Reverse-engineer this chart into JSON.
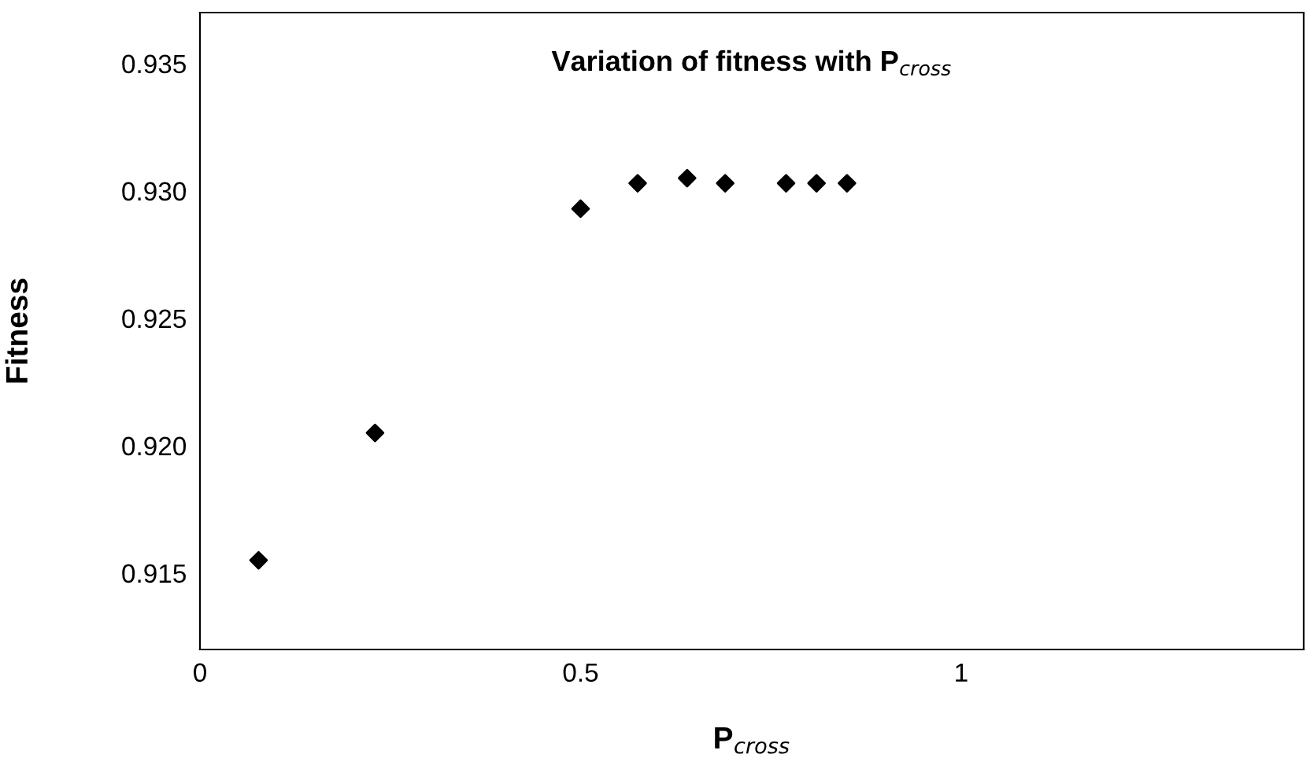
{
  "chart_data": {
    "type": "scatter",
    "title": "Variation of fitness with P$_{cross}$",
    "xlabel": "P$_{cross}$",
    "ylabel": "Fitness",
    "x": [
      0.077,
      0.23,
      0.5,
      0.575,
      0.64,
      0.69,
      0.77,
      0.81,
      0.85
    ],
    "series": [
      {
        "color": "#000000",
        "values": [
          0.9155,
          0.9205,
          0.9293,
          0.9303,
          0.9305,
          0.9303,
          0.9303,
          0.9303,
          0.9303
        ]
      }
    ],
    "xlim": [
      0,
      1.45
    ],
    "xticks": [
      0,
      0.5,
      1
    ],
    "ylim": [
      0.912,
      0.937
    ],
    "yticks": [
      0.915,
      {
        "value": 0.92,
        "label": "0.920"
      },
      0.925,
      {
        "value": 0.93,
        "label": "0.930"
      },
      0.935
    ],
    "marker": "diamond",
    "grid": false,
    "legend": false
  }
}
